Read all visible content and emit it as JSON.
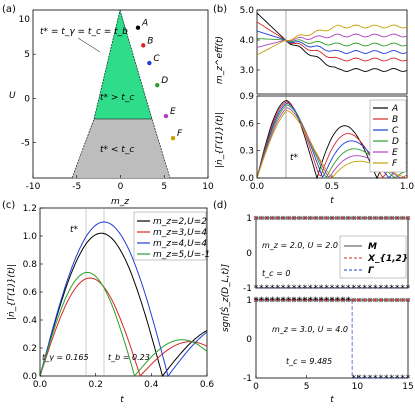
{
  "panels": {
    "a": "(a)",
    "b": "(b)",
    "c": "(c)",
    "d": "(d)"
  },
  "chart_data": [
    {
      "id": "a",
      "type": "area",
      "xlabel": "m_z",
      "ylabel": "U",
      "xlim": [
        -10,
        10
      ],
      "ylim": [
        -9,
        10
      ],
      "xticks": [
        "-10",
        "-5",
        "0",
        "5",
        "10"
      ],
      "yticks": [
        "-5",
        "0",
        "5"
      ],
      "regions": [
        {
          "label": "t* > t_c",
          "color": "#2edc8a"
        },
        {
          "label": "t* < t_c",
          "color": "#bdbdbd"
        }
      ],
      "annotation": "t* = t_γ = t_c = t_b",
      "points": [
        {
          "name": "A",
          "mz": 2.0,
          "U": 8.0,
          "color": "#000000"
        },
        {
          "name": "B",
          "mz": 2.6,
          "U": 6.0,
          "color": "#d62728"
        },
        {
          "name": "C",
          "mz": 3.3,
          "U": 4.0,
          "color": "#1f3fd6"
        },
        {
          "name": "D",
          "mz": 4.2,
          "U": 1.5,
          "color": "#2ca02c"
        },
        {
          "name": "E",
          "mz": 5.2,
          "U": -2.0,
          "color": "#b040c0"
        },
        {
          "name": "F",
          "mz": 6.0,
          "U": -4.5,
          "color": "#c8a000"
        }
      ]
    },
    {
      "id": "b-top",
      "type": "line",
      "ylabel": "m_z^eff(t)",
      "xlim": [
        0,
        1
      ],
      "ylim": [
        2.2,
        5.0
      ],
      "yticks": [
        "3.0",
        "4.0",
        "5.0"
      ],
      "series": [
        {
          "name": "A",
          "color": "#000000"
        },
        {
          "name": "B",
          "color": "#d62728"
        },
        {
          "name": "C",
          "color": "#1f3fd6"
        },
        {
          "name": "D",
          "color": "#2ca02c"
        },
        {
          "name": "E",
          "color": "#b040c0"
        },
        {
          "name": "F",
          "color": "#c8a000"
        }
      ]
    },
    {
      "id": "b-bottom",
      "type": "line",
      "xlabel": "t",
      "ylabel": "|ṅ_{Γ(1)}(t)|",
      "xlim": [
        0,
        1
      ],
      "ylim": [
        0,
        0.9
      ],
      "xticks": [
        "0.0",
        "0.5",
        "1.0"
      ],
      "yticks": [
        "0.0",
        "0.3",
        "0.6",
        "0.9"
      ],
      "annotation": "t*",
      "legend": "right"
    },
    {
      "id": "c",
      "type": "line",
      "xlabel": "t",
      "ylabel": "|ṅ_{Γ(1)}(t)|",
      "xlim": [
        0,
        0.6
      ],
      "ylim": [
        0,
        1.2
      ],
      "xticks": [
        "0.0",
        "0.2",
        "0.4",
        "0.6"
      ],
      "yticks": [
        "0.0",
        "0.2",
        "0.4",
        "0.6",
        "0.8",
        "1.0",
        "1.2"
      ],
      "annotations": [
        "t*",
        "t_γ = 0.165",
        "t_b = 0.23"
      ],
      "legend": "top-right",
      "series": [
        {
          "name": "m_z=2,U=2",
          "color": "#000000",
          "peak": 1.02,
          "tpeak": 0.22
        },
        {
          "name": "m_z=3,U=4",
          "color": "#d62728",
          "peak": 0.7,
          "tpeak": 0.18
        },
        {
          "name": "m_z=4,U=4",
          "color": "#1f3fd6",
          "peak": 1.1,
          "tpeak": 0.23
        },
        {
          "name": "m_z=5,U=-1",
          "color": "#2ca02c",
          "peak": 0.74,
          "tpeak": 0.17
        }
      ]
    },
    {
      "id": "d",
      "type": "line",
      "xlabel": "t",
      "ylabel": "sgn[Ṡ_z(D_L,t)]",
      "xlim": [
        0,
        15
      ],
      "ylim": [
        -1,
        1
      ],
      "xticks": [
        "0",
        "5",
        "10",
        "15"
      ],
      "yticks": [
        "-1",
        "0",
        "1"
      ],
      "legend": "right",
      "series": [
        {
          "name": "M",
          "color": "#444444"
        },
        {
          "name": "X_{1,2}",
          "color": "#d62728"
        },
        {
          "name": "Γ",
          "color": "#1f3fd6"
        }
      ],
      "annotations": [
        {
          "text": "m_z = 2.0, U = 2.0"
        },
        {
          "text": "t_c = 0"
        },
        {
          "text": "m_z = 3.0, U = 4.0"
        },
        {
          "text": "t_c = 9.485"
        }
      ]
    }
  ]
}
